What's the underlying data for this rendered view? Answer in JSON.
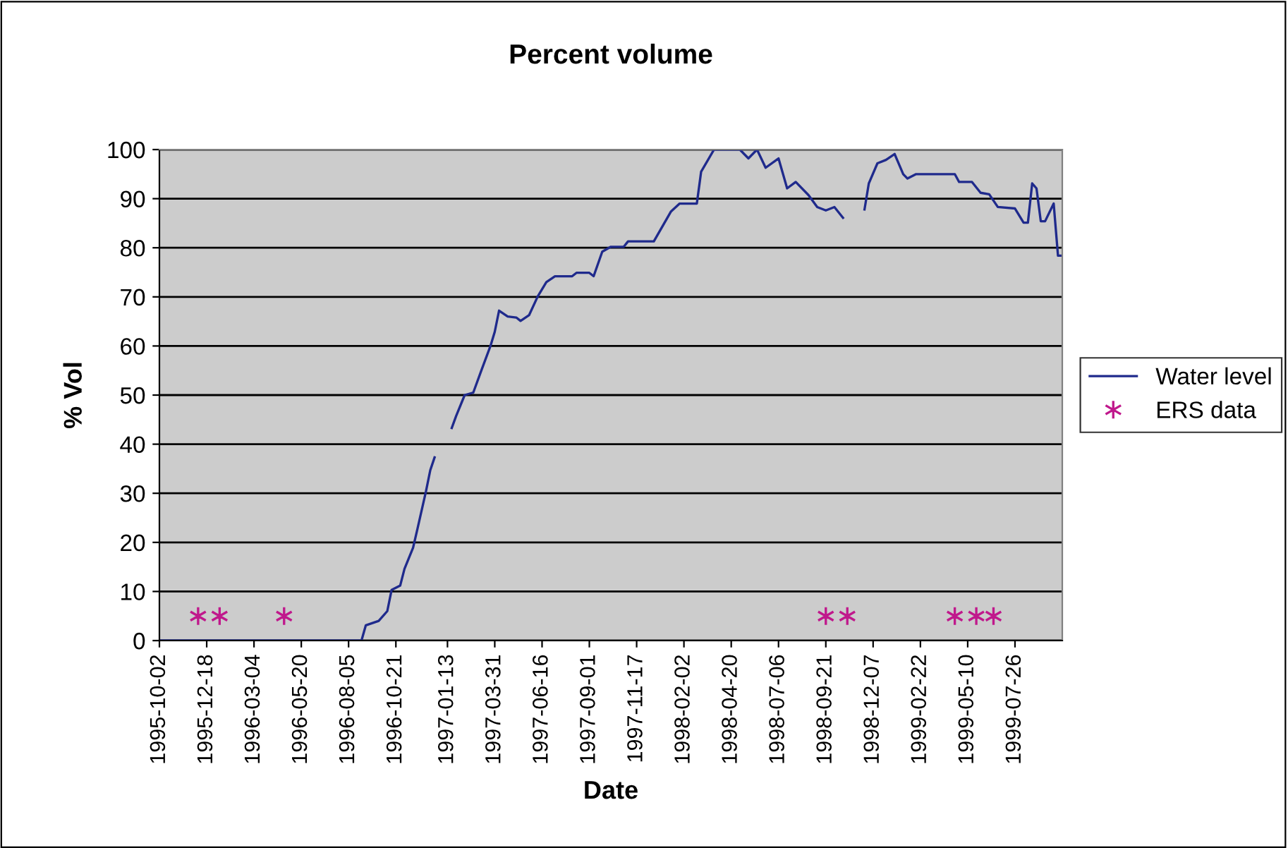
{
  "chart_data": {
    "type": "line",
    "title": "Percent volume",
    "xlabel": "Date",
    "ylabel": "% Vol",
    "xlim": [
      "1995-10-02",
      "1999-10-11"
    ],
    "xticks": [
      "1995-10-02",
      "1995-12-18",
      "1996-03-04",
      "1996-05-20",
      "1996-08-05",
      "1996-10-21",
      "1997-01-13",
      "1997-03-31",
      "1997-06-16",
      "1997-09-01",
      "1997-11-17",
      "1998-02-02",
      "1998-04-20",
      "1998-07-06",
      "1998-09-21",
      "1998-12-07",
      "1999-02-22",
      "1999-05-10",
      "1999-07-26"
    ],
    "ylim": [
      0,
      100
    ],
    "yticks": [
      0,
      10,
      20,
      30,
      40,
      50,
      60,
      70,
      80,
      90,
      100
    ],
    "grid": "y",
    "legend": "right",
    "series": [
      {
        "name": "Water level",
        "color": "#1f2a8c",
        "marker": "none",
        "x": [
          "1995-10-02",
          "1996-08-26",
          "1996-09-02",
          "1996-09-23",
          "1996-10-07",
          "1996-10-14",
          "1996-10-28",
          "1996-11-04",
          "1996-11-18",
          "1996-11-25",
          "1996-12-09",
          "1996-12-16",
          "1996-12-23",
          "1996-12-30",
          "1997-01-20",
          "1997-01-27",
          "1997-02-10",
          "1997-02-24",
          "1997-03-10",
          "1997-03-24",
          "1997-03-31",
          "1997-04-07",
          "1997-04-21",
          "1997-05-05",
          "1997-05-12",
          "1997-05-26",
          "1997-06-09",
          "1997-06-23",
          "1997-07-07",
          "1997-08-04",
          "1997-08-11",
          "1997-09-01",
          "1997-09-08",
          "1997-09-22",
          "1997-10-06",
          "1997-10-27",
          "1997-11-03",
          "1997-12-15",
          "1998-01-12",
          "1998-01-26",
          "1998-02-23",
          "1998-03-02",
          "1998-03-23",
          "1998-05-04",
          "1998-05-18",
          "1998-06-01",
          "1998-06-15",
          "1998-07-06",
          "1998-07-20",
          "1998-08-03",
          "1998-08-24",
          "1998-09-07",
          "1998-09-21",
          "1998-10-05",
          "1998-10-19",
          "1998-10-26",
          "1998-11-23",
          "1998-11-30",
          "1998-12-14",
          "1998-12-28",
          "1999-01-11",
          "1999-01-25",
          "1999-02-01",
          "1999-02-15",
          "1999-04-19",
          "1999-04-26",
          "1999-05-17",
          "1999-05-31",
          "1999-06-14",
          "1999-06-28",
          "1999-07-26",
          "1999-08-09",
          "1999-08-16",
          "1999-08-23",
          "1999-08-30",
          "1999-09-06",
          "1999-09-13",
          "1999-09-27",
          "1999-10-04",
          "1999-10-11"
        ],
        "values": [
          0,
          0,
          3.1,
          4.0,
          6,
          10.3,
          11.2,
          14.6,
          18.9,
          22.7,
          30.4,
          34.7,
          37.3,
          null,
          43.3,
          45.7,
          50,
          50.5,
          55.3,
          60,
          62.9,
          67.2,
          66,
          65.8,
          65.1,
          66.3,
          70.1,
          73,
          74.2,
          74.2,
          74.9,
          74.9,
          74.2,
          79.2,
          80.2,
          80.2,
          81.3,
          81.3,
          87.4,
          89,
          89,
          95.5,
          100,
          100,
          98.2,
          100,
          96.3,
          98.2,
          92.1,
          93.4,
          90.7,
          88.3,
          87.6,
          88.3,
          86.1,
          null,
          87.8,
          93.1,
          97.2,
          97.9,
          99.1,
          95,
          94.1,
          95,
          95,
          93.4,
          93.4,
          91.2,
          90.9,
          88.3,
          88,
          85.1,
          85.1,
          93.1,
          92.1,
          85.4,
          85.4,
          89,
          78.4,
          78.4
        ]
      },
      {
        "name": "ERS data",
        "type": "scatter",
        "color": "#c0188c",
        "marker": "cross",
        "x": [
          "1995-12-04",
          "1996-01-08",
          "1996-04-22",
          "1998-09-21",
          "1998-10-26",
          "1999-04-19",
          "1999-05-24",
          "1999-06-21"
        ],
        "values": [
          5,
          5,
          5,
          5,
          5,
          5,
          5,
          5
        ]
      }
    ]
  }
}
